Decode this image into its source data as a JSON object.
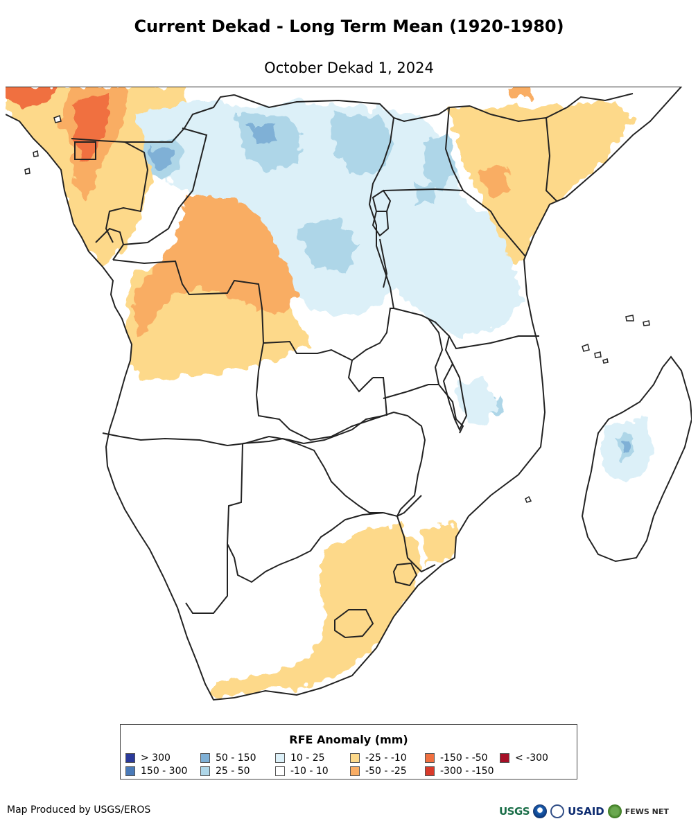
{
  "title": "Current Dekad - Long Term Mean (1920-1980)",
  "subtitle": "October Dekad 1, 2024",
  "map": {
    "region": "Southern Africa",
    "variable": "RFE Anomaly",
    "background_color": "#ffffff",
    "border_color": "#222222"
  },
  "legend": {
    "title": "RFE Anomaly (mm)",
    "items": [
      {
        "label": "> 300",
        "color": "#2b3a9a"
      },
      {
        "label": "150 - 300",
        "color": "#4a7ab8"
      },
      {
        "label": "50 - 150",
        "color": "#7fb0d6"
      },
      {
        "label": "25 - 50",
        "color": "#aed6e8"
      },
      {
        "label": "10 - 25",
        "color": "#dcf0f8"
      },
      {
        "label": "-10 - 10",
        "color": "#ffffff"
      },
      {
        "label": "-25 - -10",
        "color": "#fdd98a"
      },
      {
        "label": "-50 - -25",
        "color": "#f9ad64"
      },
      {
        "label": "-150 - -50",
        "color": "#f07040"
      },
      {
        "label": "-300 - -150",
        "color": "#d93a2a"
      },
      {
        "label": "< -300",
        "color": "#a50f26"
      }
    ]
  },
  "footer": {
    "credit": "Map Produced by USGS/EROS",
    "logos": {
      "usgs": "USGS",
      "usaid": "USAID",
      "fews": "FEWS NET"
    }
  }
}
